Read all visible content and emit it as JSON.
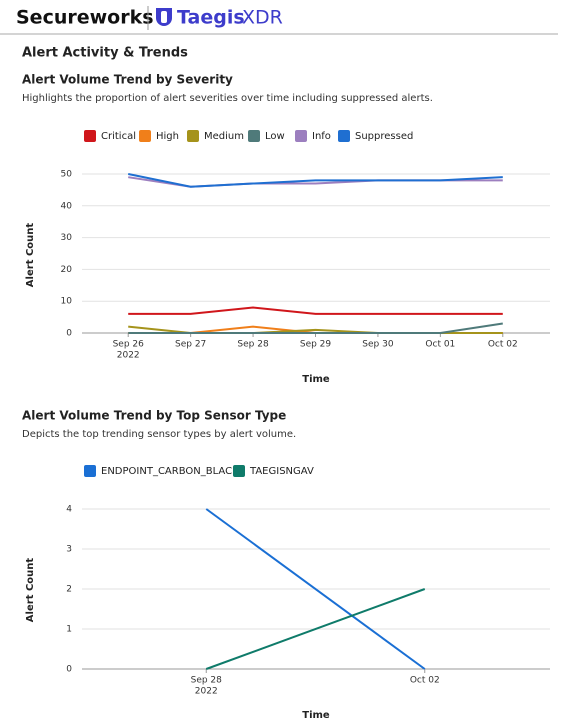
{
  "header": {
    "brand": "Secureworks",
    "product_bold": "Taegis",
    "product_light": "XDR"
  },
  "section_title": "Alert Activity & Trends",
  "chart_data": [
    {
      "type": "line",
      "title": "Alert Volume Trend by Severity",
      "subtitle": "Highlights the proportion of alert severities over time including suppressed alerts.",
      "categories": [
        "Sep 26",
        "Sep 27",
        "Sep 28",
        "Sep 29",
        "Sep 30",
        "Oct 01",
        "Oct 02"
      ],
      "x_year_label": "2022",
      "x_label": "Time",
      "y_label": "Alert Count",
      "ylim": [
        0,
        50
      ],
      "yticks": [
        0,
        10,
        20,
        30,
        40,
        50
      ],
      "grid": true,
      "legend": "top-left",
      "series": [
        {
          "name": "Critical",
          "color": "#d0161b",
          "values": [
            6,
            6,
            8,
            6,
            6,
            6,
            6
          ]
        },
        {
          "name": "High",
          "color": "#f07f1a",
          "values": [
            0,
            0,
            2,
            0,
            0,
            0,
            0
          ]
        },
        {
          "name": "Medium",
          "color": "#a5931b",
          "values": [
            2,
            0,
            0,
            1,
            0,
            0,
            0
          ]
        },
        {
          "name": "Low",
          "color": "#4f7a7a",
          "values": [
            0,
            0,
            0,
            0,
            0,
            0,
            3
          ]
        },
        {
          "name": "Info",
          "color": "#9c7fbf",
          "values": [
            49,
            46,
            47,
            47,
            48,
            48,
            48
          ]
        },
        {
          "name": "Suppressed",
          "color": "#1f6fd1",
          "values": [
            50,
            46,
            47,
            48,
            48,
            48,
            49
          ]
        }
      ]
    },
    {
      "type": "line",
      "title": "Alert Volume Trend by Top Sensor Type",
      "subtitle": "Depicts the top trending sensor types by alert volume.",
      "categories": [
        "Sep 28",
        "Oct 02"
      ],
      "x_year_label": "2022",
      "x_label": "Time",
      "y_label": "Alert Count",
      "ylim": [
        0,
        4
      ],
      "yticks": [
        0,
        1,
        2,
        3,
        4
      ],
      "grid": true,
      "legend": "top-left",
      "series": [
        {
          "name": "ENDPOINT_CARBON_BLACK",
          "color": "#1a6fd4",
          "values": [
            4,
            0
          ]
        },
        {
          "name": "TAEGISNGAV",
          "color": "#0f7b6a",
          "values": [
            0,
            2
          ]
        }
      ]
    }
  ]
}
